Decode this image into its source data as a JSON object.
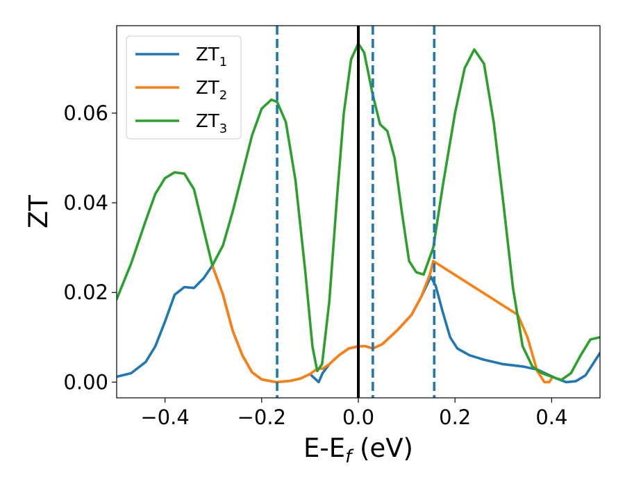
{
  "chart_data": {
    "type": "line",
    "title": "",
    "xlabel": {
      "main": "E-E",
      "sub": "f",
      "tail": " (eV)"
    },
    "ylabel": "ZT",
    "xlim": [
      -0.5,
      0.5
    ],
    "ylim": [
      -0.0035,
      0.0795
    ],
    "x_ticks": [
      -0.4,
      -0.2,
      0.0,
      0.2,
      0.4
    ],
    "x_tick_labels": [
      "−0.4",
      "−0.2",
      "0.0",
      "0.2",
      "0.4"
    ],
    "y_ticks": [
      0.0,
      0.02,
      0.04,
      0.06
    ],
    "y_tick_labels": [
      "0.00",
      "0.02",
      "0.04",
      "0.06"
    ],
    "grid": false,
    "legend_position": "top-left",
    "vertical_lines": [
      {
        "x": 0.0,
        "color": "#000000",
        "style": "solid"
      },
      {
        "x": -0.168,
        "color": "#1f77b4",
        "style": "dashed"
      },
      {
        "x": 0.03,
        "color": "#1f77b4",
        "style": "dashed"
      },
      {
        "x": 0.157,
        "color": "#1f77b4",
        "style": "dashed"
      }
    ],
    "series": [
      {
        "name": "ZT",
        "sub": "1",
        "color": "#1f77b4",
        "points": [
          [
            -0.5,
            0.0012
          ],
          [
            -0.47,
            0.002
          ],
          [
            -0.44,
            0.0045
          ],
          [
            -0.42,
            0.008
          ],
          [
            -0.4,
            0.0135
          ],
          [
            -0.38,
            0.0195
          ],
          [
            -0.36,
            0.0212
          ],
          [
            -0.34,
            0.021
          ],
          [
            -0.32,
            0.0232
          ],
          [
            -0.302,
            0.026
          ],
          [
            -0.28,
            0.0195
          ],
          [
            -0.26,
            0.0115
          ],
          [
            -0.24,
            0.006
          ],
          [
            -0.22,
            0.0022
          ],
          [
            -0.2,
            0.0006
          ],
          [
            -0.17,
            0.0
          ],
          [
            -0.14,
            0.0003
          ],
          [
            -0.12,
            0.0008
          ],
          [
            -0.1,
            0.0018
          ],
          [
            -0.09,
            0.0008
          ],
          [
            -0.082,
            0.0
          ],
          [
            -0.074,
            0.002
          ],
          [
            -0.06,
            0.004
          ],
          [
            -0.04,
            0.006
          ],
          [
            -0.02,
            0.0075
          ],
          [
            0.0,
            0.008
          ],
          [
            0.015,
            0.008
          ],
          [
            0.03,
            0.0075
          ],
          [
            0.05,
            0.0085
          ],
          [
            0.08,
            0.0115
          ],
          [
            0.11,
            0.015
          ],
          [
            0.13,
            0.019
          ],
          [
            0.15,
            0.0235
          ],
          [
            0.16,
            0.0215
          ],
          [
            0.175,
            0.0155
          ],
          [
            0.19,
            0.01
          ],
          [
            0.205,
            0.0075
          ],
          [
            0.23,
            0.006
          ],
          [
            0.26,
            0.005
          ],
          [
            0.3,
            0.004
          ],
          [
            0.34,
            0.0035
          ],
          [
            0.37,
            0.0028
          ],
          [
            0.39,
            0.0018
          ],
          [
            0.41,
            0.0008
          ],
          [
            0.43,
            0.0
          ],
          [
            0.45,
            0.0002
          ],
          [
            0.47,
            0.0015
          ],
          [
            0.5,
            0.0065
          ]
        ]
      },
      {
        "name": "ZT",
        "sub": "2",
        "color": "#ff7f0e",
        "points": [
          [
            -0.302,
            0.026
          ],
          [
            -0.28,
            0.0195
          ],
          [
            -0.26,
            0.0115
          ],
          [
            -0.24,
            0.006
          ],
          [
            -0.22,
            0.0022
          ],
          [
            -0.2,
            0.0006
          ],
          [
            -0.17,
            0.0
          ],
          [
            -0.14,
            0.0003
          ],
          [
            -0.12,
            0.0008
          ],
          [
            -0.1,
            0.0018
          ],
          [
            -0.085,
            0.003
          ],
          [
            -0.074,
            0.003
          ],
          [
            -0.06,
            0.004
          ],
          [
            -0.04,
            0.006
          ],
          [
            -0.02,
            0.0075
          ],
          [
            0.0,
            0.008
          ],
          [
            0.015,
            0.008
          ],
          [
            0.03,
            0.0075
          ],
          [
            0.05,
            0.0085
          ],
          [
            0.08,
            0.0115
          ],
          [
            0.11,
            0.015
          ],
          [
            0.13,
            0.019
          ],
          [
            0.148,
            0.024
          ],
          [
            0.155,
            0.027
          ],
          [
            0.33,
            0.015
          ],
          [
            0.35,
            0.01
          ],
          [
            0.37,
            0.0025
          ],
          [
            0.385,
            0.0
          ],
          [
            0.395,
            0.0
          ],
          [
            0.4,
            0.0008
          ]
        ]
      },
      {
        "name": "ZT",
        "sub": "3",
        "color": "#2ca02c",
        "points": [
          [
            -0.5,
            0.0185
          ],
          [
            -0.47,
            0.0265
          ],
          [
            -0.44,
            0.036
          ],
          [
            -0.42,
            0.042
          ],
          [
            -0.4,
            0.0455
          ],
          [
            -0.38,
            0.0468
          ],
          [
            -0.36,
            0.0465
          ],
          [
            -0.34,
            0.043
          ],
          [
            -0.32,
            0.034
          ],
          [
            -0.302,
            0.026
          ],
          [
            -0.28,
            0.0305
          ],
          [
            -0.26,
            0.038
          ],
          [
            -0.24,
            0.0465
          ],
          [
            -0.22,
            0.055
          ],
          [
            -0.2,
            0.061
          ],
          [
            -0.18,
            0.063
          ],
          [
            -0.168,
            0.0625
          ],
          [
            -0.15,
            0.058
          ],
          [
            -0.13,
            0.045
          ],
          [
            -0.11,
            0.025
          ],
          [
            -0.095,
            0.008
          ],
          [
            -0.085,
            0.0025
          ],
          [
            -0.075,
            0.004
          ],
          [
            -0.06,
            0.018
          ],
          [
            -0.045,
            0.04
          ],
          [
            -0.03,
            0.06
          ],
          [
            -0.015,
            0.072
          ],
          [
            0.0,
            0.0755
          ],
          [
            0.012,
            0.0735
          ],
          [
            0.03,
            0.064
          ],
          [
            0.045,
            0.0575
          ],
          [
            0.06,
            0.056
          ],
          [
            0.075,
            0.05
          ],
          [
            0.09,
            0.038
          ],
          [
            0.105,
            0.027
          ],
          [
            0.12,
            0.0245
          ],
          [
            0.135,
            0.024
          ],
          [
            0.155,
            0.03
          ],
          [
            0.175,
            0.044
          ],
          [
            0.2,
            0.06
          ],
          [
            0.22,
            0.07
          ],
          [
            0.24,
            0.0742
          ],
          [
            0.26,
            0.071
          ],
          [
            0.28,
            0.058
          ],
          [
            0.3,
            0.04
          ],
          [
            0.32,
            0.021
          ],
          [
            0.34,
            0.008
          ],
          [
            0.36,
            0.0035
          ],
          [
            0.38,
            0.002
          ],
          [
            0.4,
            0.0012
          ],
          [
            0.42,
            0.0005
          ],
          [
            0.44,
            0.002
          ],
          [
            0.46,
            0.006
          ],
          [
            0.48,
            0.0095
          ],
          [
            0.5,
            0.01
          ]
        ]
      }
    ]
  }
}
